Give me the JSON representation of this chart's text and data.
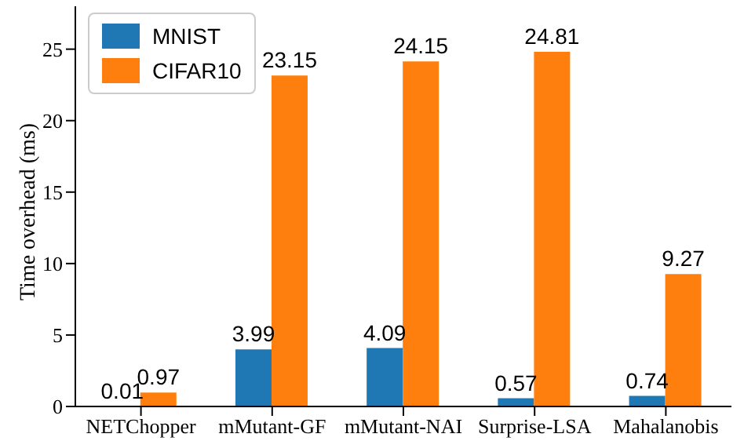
{
  "chart_data": {
    "type": "bar",
    "ylabel": "Time overhead (ms)",
    "categories": [
      "NETChopper",
      "mMutant-GF",
      "mMutant-NAI",
      "Surprise-LSA",
      "Mahalanobis"
    ],
    "series": [
      {
        "name": "MNIST",
        "color": "#1f77b4",
        "values": [
          0.01,
          3.99,
          4.09,
          0.57,
          0.74
        ]
      },
      {
        "name": "CIFAR10",
        "color": "#ff7f0e",
        "values": [
          0.97,
          23.15,
          24.15,
          24.81,
          9.27
        ]
      }
    ],
    "ylim": [
      0,
      28
    ],
    "yticks": [
      0,
      5,
      10,
      15,
      20,
      25
    ],
    "data_labels": true,
    "legend": "top left",
    "grid": false
  }
}
